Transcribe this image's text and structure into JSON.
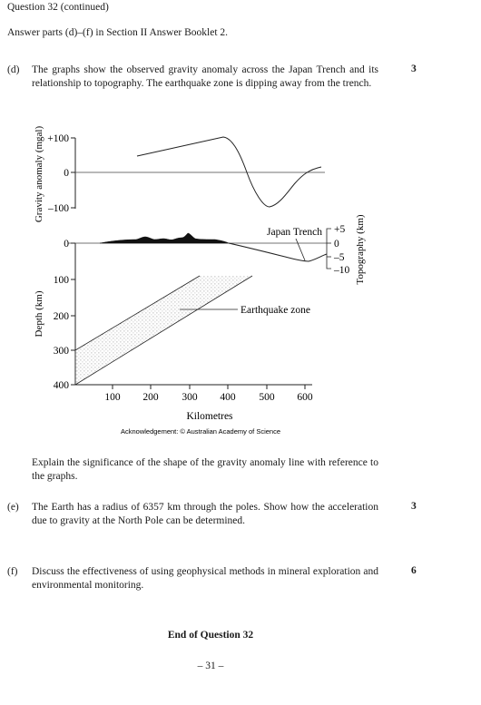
{
  "header": "Question 32 (continued)",
  "instruction": "Answer parts (d)–(f) in Section II Answer Booklet 2.",
  "parts": {
    "d": {
      "label": "(d)",
      "text": "The graphs show the observed gravity anomaly across the Japan Trench and its relationship to topography. The earthquake zone is dipping away from the trench.",
      "marks": "3",
      "question": "Explain the significance of the shape of the gravity anomaly line with reference to the graphs."
    },
    "e": {
      "label": "(e)",
      "text": "The Earth has a radius of 6357 km through the poles. Show how the acceleration due to gravity at the North Pole can be determined.",
      "marks": "3"
    },
    "f": {
      "label": "(f)",
      "text": "Discuss the effectiveness of using geophysical methods in mineral exploration and environmental monitoring.",
      "marks": "6"
    }
  },
  "figure": {
    "gravity_axis_label": "Gravity anomaly (mgal)",
    "gravity_ticks": [
      "+100",
      "0",
      "–100"
    ],
    "depth_axis_label": "Depth (km)",
    "depth_ticks": [
      "0",
      "100",
      "200",
      "300",
      "400"
    ],
    "topo_axis_label": "Topography (km)",
    "topo_ticks": [
      "+5",
      "0",
      "–5",
      "–10"
    ],
    "x_ticks": [
      "100",
      "200",
      "300",
      "400",
      "500",
      "600"
    ],
    "x_label": "Kilometres",
    "trench_label": "Japan Trench",
    "quake_label": "Earthquake zone",
    "acknowledgement": "Acknowledgement: © Australian Academy of Science"
  },
  "chart_data": [
    {
      "type": "line",
      "name": "gravity-anomaly",
      "x": [
        160,
        395,
        430,
        470,
        505,
        545,
        590,
        620,
        650
      ],
      "y": [
        45,
        100,
        70,
        -30,
        -95,
        -85,
        -30,
        5,
        15
      ],
      "xlim": [
        0,
        650
      ],
      "ylim": [
        -100,
        100
      ],
      "ylabel": "Gravity anomaly (mgal)"
    },
    {
      "type": "area",
      "name": "topography",
      "x": [
        0,
        90,
        160,
        190,
        215,
        240,
        265,
        285,
        300,
        320,
        345,
        370,
        400,
        430,
        480,
        545,
        575,
        610,
        640
      ],
      "y": [
        0,
        0.3,
        1.2,
        2.8,
        1.0,
        1.7,
        1.1,
        3.0,
        1.4,
        4.5,
        1.5,
        1.0,
        0.3,
        0,
        -2,
        -5,
        -7,
        -5,
        -3
      ],
      "ylim": [
        -10,
        5
      ],
      "ylabel": "Topography (km)"
    },
    {
      "type": "area",
      "name": "earthquake-zone",
      "upper_edge": {
        "x": [
          0,
          345
        ],
        "y": [
          305,
          90
        ]
      },
      "lower_edge": {
        "x": [
          0,
          465
        ],
        "y": [
          400,
          90
        ]
      },
      "ylim": [
        400,
        0
      ],
      "ylabel": "Depth (km)",
      "xlabel": "Kilometres"
    }
  ],
  "footer": {
    "end": "End of Question 32",
    "page": "– 31 –"
  }
}
